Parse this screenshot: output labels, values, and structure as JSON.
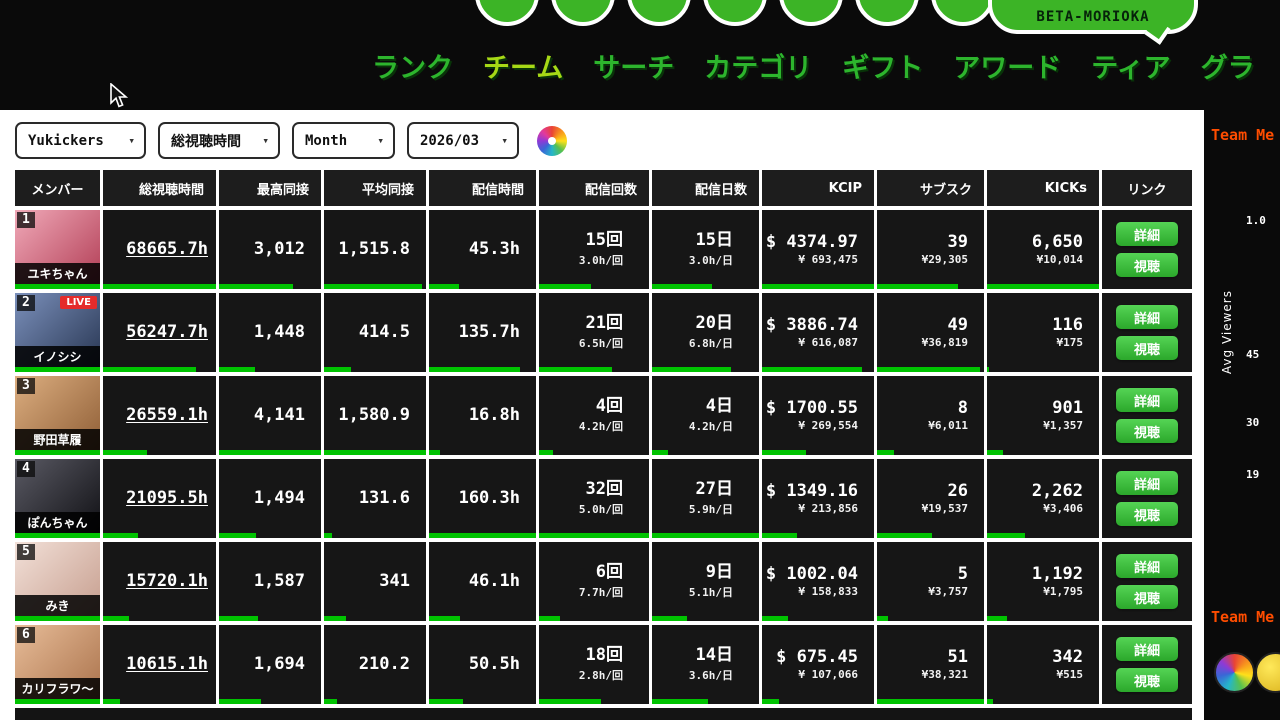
{
  "brand": {
    "badge": "BETA-MORIOKA"
  },
  "nav": {
    "items": [
      {
        "label": "ランク",
        "active": false
      },
      {
        "label": "チーム",
        "active": true
      },
      {
        "label": "サーチ",
        "active": false
      },
      {
        "label": "カテゴリ",
        "active": false
      },
      {
        "label": "ギフト",
        "active": false
      },
      {
        "label": "アワード",
        "active": false
      },
      {
        "label": "ティア",
        "active": false
      },
      {
        "label": "グラ",
        "active": false
      }
    ]
  },
  "filters": {
    "team": "Yukickers",
    "metric": "総視聴時間",
    "period": "Month",
    "month": "2026/03"
  },
  "table": {
    "columns": [
      "メンバー",
      "総視聴時間",
      "最高同接",
      "平均同接",
      "配信時間",
      "配信回数",
      "配信日数",
      "KCIP",
      "サブスク",
      "KICKs",
      "リンク"
    ],
    "detail_label": "詳細",
    "watch_label": "視聴",
    "live_label": "LIVE",
    "rows": [
      {
        "rank": "1",
        "name": "ユキちゃん",
        "live": false,
        "avatar": [
          "#f0a9b8",
          "#b03a52"
        ],
        "total": "68665.7h",
        "peak": "3,012",
        "avg": "1,515.8",
        "hours": "45.3h",
        "count": "15回",
        "count_sub": "3.0h/回",
        "days": "15日",
        "days_sub": "3.0h/日",
        "kcip": "$ 4374.97",
        "kcip_sub": "¥ 693,475",
        "subs": "39",
        "subs_sub": "¥29,305",
        "kicks": "6,650",
        "kicks_sub": "¥10,014",
        "bars": [
          100,
          73,
          96,
          28,
          47,
          56,
          100,
          76,
          100
        ]
      },
      {
        "rank": "2",
        "name": "イノシシ",
        "live": true,
        "avatar": [
          "#7b90bb",
          "#25334f"
        ],
        "total": "56247.7h",
        "peak": "1,448",
        "avg": "414.5",
        "hours": "135.7h",
        "count": "21回",
        "count_sub": "6.5h/回",
        "days": "20日",
        "days_sub": "6.8h/日",
        "kcip": "$ 3886.74",
        "kcip_sub": "¥ 616,087",
        "subs": "49",
        "subs_sub": "¥36,819",
        "kicks": "116",
        "kicks_sub": "¥175",
        "bars": [
          82,
          35,
          26,
          85,
          66,
          74,
          89,
          96,
          2
        ]
      },
      {
        "rank": "3",
        "name": "野田草履",
        "live": false,
        "avatar": [
          "#dcae80",
          "#8d5c34"
        ],
        "total": "26559.1h",
        "peak": "4,141",
        "avg": "1,580.9",
        "hours": "16.8h",
        "count": "4回",
        "count_sub": "4.2h/回",
        "days": "4日",
        "days_sub": "4.2h/日",
        "kcip": "$ 1700.55",
        "kcip_sub": "¥ 269,554",
        "subs": "8",
        "subs_sub": "¥6,011",
        "kicks": "901",
        "kicks_sub": "¥1,357",
        "bars": [
          39,
          100,
          100,
          10,
          13,
          15,
          39,
          16,
          14
        ]
      },
      {
        "rank": "4",
        "name": "ぽんちゃん",
        "live": false,
        "avatar": [
          "#5a5a64",
          "#0e0e12"
        ],
        "total": "21095.5h",
        "peak": "1,494",
        "avg": "131.6",
        "hours": "160.3h",
        "count": "32回",
        "count_sub": "5.0h/回",
        "days": "27日",
        "days_sub": "5.9h/日",
        "kcip": "$ 1349.16",
        "kcip_sub": "¥ 213,856",
        "subs": "26",
        "subs_sub": "¥19,537",
        "kicks": "2,262",
        "kicks_sub": "¥3,406",
        "bars": [
          31,
          36,
          8,
          100,
          100,
          100,
          31,
          51,
          34
        ]
      },
      {
        "rank": "5",
        "name": "みき",
        "live": false,
        "avatar": [
          "#f2e0d8",
          "#c59c8c"
        ],
        "total": "15720.1h",
        "peak": "1,587",
        "avg": "341",
        "hours": "46.1h",
        "count": "6回",
        "count_sub": "7.7h/回",
        "days": "9日",
        "days_sub": "5.1h/日",
        "kcip": "$ 1002.04",
        "kcip_sub": "¥ 158,833",
        "subs": "5",
        "subs_sub": "¥3,757",
        "kicks": "1,192",
        "kicks_sub": "¥1,795",
        "bars": [
          23,
          38,
          22,
          29,
          19,
          33,
          23,
          10,
          18
        ]
      },
      {
        "rank": "6",
        "name": "カリフラワ〜",
        "live": false,
        "avatar": [
          "#e7bc98",
          "#a9714a"
        ],
        "total": "10615.1h",
        "peak": "1,694",
        "avg": "210.2",
        "hours": "50.5h",
        "count": "18回",
        "count_sub": "2.8h/回",
        "days": "14日",
        "days_sub": "3.6h/日",
        "kcip": "$ 675.45",
        "kcip_sub": "¥ 107,066",
        "subs": "51",
        "subs_sub": "¥38,321",
        "kicks": "342",
        "kicks_sub": "¥515",
        "bars": [
          15,
          41,
          13,
          32,
          56,
          52,
          15,
          100,
          5
        ]
      }
    ]
  },
  "side_panel": {
    "top_title": "Team Me",
    "axis_label": "Avg Viewers",
    "tick_1": "1.0",
    "tick_2": "45",
    "tick_3": "30",
    "tick_4": "19",
    "bottom_title": "Team Me"
  },
  "colors": {
    "accent_green": "#00c301",
    "nav_green": "#2db52d",
    "nav_active_green": "#a6d916",
    "live_red": "#e52b2b",
    "panel_red": "#ff4d00",
    "logo_green": "#3cb426"
  }
}
